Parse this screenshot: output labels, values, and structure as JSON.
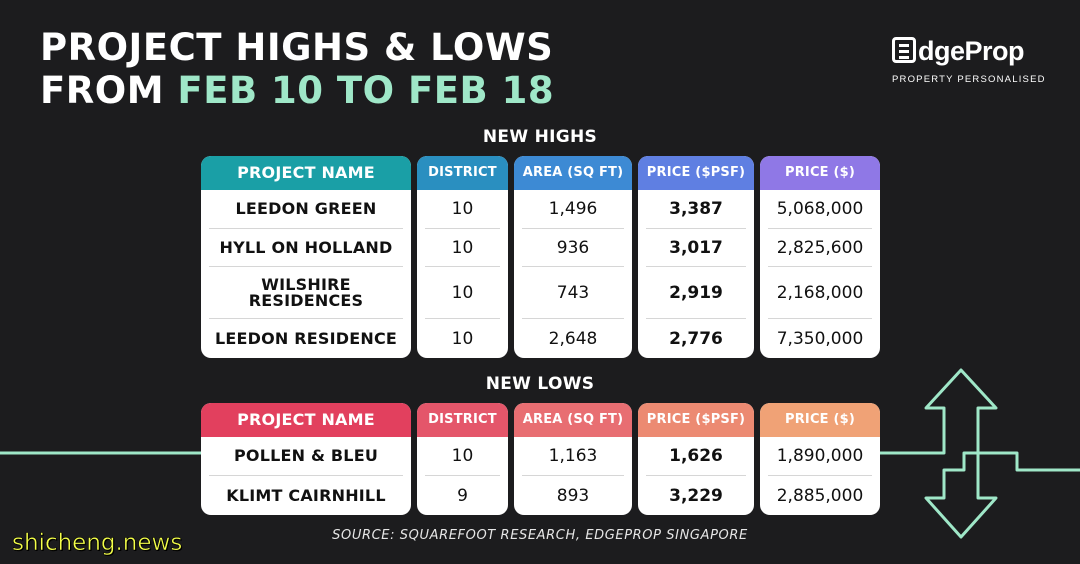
{
  "title": {
    "line1": "PROJECT HIGHS & LOWS",
    "line2_prefix": "FROM ",
    "line2_highlight": "FEB 10 TO FEB 18"
  },
  "logo": {
    "name": "EdgeProp",
    "name_rest": "dgeProp",
    "tagline": "PROPERTY PERSONALISED"
  },
  "highs": {
    "title": "NEW HIGHS",
    "headers": [
      "PROJECT NAME",
      "DISTRICT",
      "AREA (SQ FT)",
      "PRICE ($PSF)",
      "PRICE ($)"
    ],
    "rows": [
      [
        "LEEDON GREEN",
        "10",
        "1,496",
        "3,387",
        "5,068,000"
      ],
      [
        "HYLL ON HOLLAND",
        "10",
        "936",
        "3,017",
        "2,825,600"
      ],
      [
        "WILSHIRE RESIDENCES",
        "10",
        "743",
        "2,919",
        "2,168,000"
      ],
      [
        "LEEDON RESIDENCE",
        "10",
        "2,648",
        "2,776",
        "7,350,000"
      ]
    ]
  },
  "lows": {
    "title": "NEW LOWS",
    "headers": [
      "PROJECT NAME",
      "DISTRICT",
      "AREA (SQ FT)",
      "PRICE ($PSF)",
      "PRICE ($)"
    ],
    "rows": [
      [
        "POLLEN & BLEU",
        "10",
        "1,163",
        "1,626",
        "1,890,000"
      ],
      [
        "KLIMT CAIRNHILL",
        "9",
        "893",
        "3,229",
        "2,885,000"
      ]
    ]
  },
  "source": "SOURCE: SQUAREFOOT RESEARCH, EDGEPROP SINGAPORE",
  "watermark": "shicheng.news",
  "colors": {
    "background": "#1c1c1e",
    "accent": "#9fe7c8",
    "highs_headers": [
      "#1a9fa6",
      "#2a8fc0",
      "#3d8ad4",
      "#5f7fe2",
      "#8f78e6"
    ],
    "lows_headers": [
      "#e2405e",
      "#e4566a",
      "#e86e72",
      "#ec8a72",
      "#f0a276"
    ],
    "line": "#9fe7c8"
  }
}
